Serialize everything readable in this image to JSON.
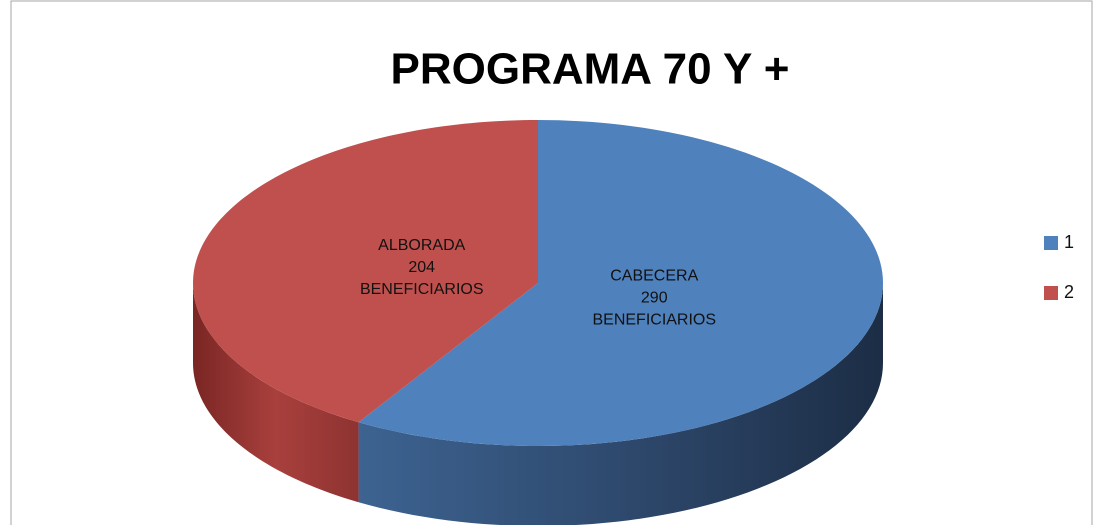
{
  "chart_data": {
    "type": "pie",
    "title": "PROGRAMA 70 Y +",
    "categories": [
      "CABECERA",
      "ALBORADA"
    ],
    "values": [
      290,
      204
    ],
    "data_label_suffix": "BENEFICIARIOS",
    "legend": [
      "1",
      "2"
    ],
    "colors": [
      "#4f81bd",
      "#c0504d"
    ],
    "legend_position": "right"
  }
}
